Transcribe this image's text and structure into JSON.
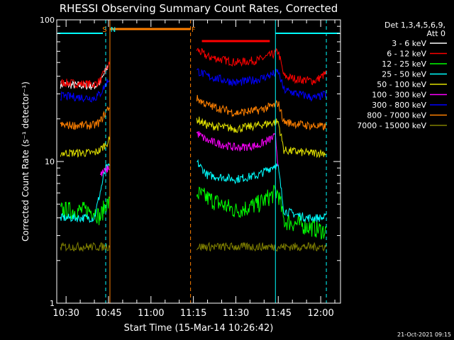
{
  "chart_data": {
    "type": "line",
    "title": "RHESSI Observing Summary Count Rates, Corrected",
    "xlabel": "Start Time (15-Mar-14 10:26:42)",
    "ylabel": "Corrected Count Rate (s⁻¹ detector⁻¹)",
    "yscale": "log",
    "ylim": [
      1,
      100
    ],
    "xlim": [
      "10:26:42",
      "12:07"
    ],
    "x_ticks": [
      "10:30",
      "10:45",
      "11:00",
      "11:15",
      "11:30",
      "11:45",
      "12:00"
    ],
    "y_ticks": [
      "1",
      "10",
      "100"
    ],
    "legend": {
      "placement": "right",
      "header": [
        "Det 1,3,4,5,6,9,",
        "Att 0"
      ],
      "entries": [
        "3 - 6 keV",
        "6 - 12 keV",
        "12 - 25 keV",
        "25 - 50 keV",
        "50 - 100 keV",
        "100 - 300 keV",
        "300 - 800 keV",
        "800 - 7000 keV",
        "7000 - 15000 keV"
      ]
    },
    "flags": [
      {
        "label": "S"
      },
      {
        "label": "N"
      },
      {
        "label": "F"
      }
    ],
    "series": [
      {
        "name": "3 - 6 keV",
        "color": "#ffffff",
        "x": [
          "10:28",
          "10:40",
          "10:42",
          "10:45"
        ],
        "y": [
          35,
          34,
          36,
          48
        ]
      },
      {
        "name": "6 - 12 keV",
        "color": "#ff0000",
        "x": [
          "10:28",
          "10:40",
          "10:42",
          "10:45",
          "11:16",
          "11:20",
          "11:30",
          "11:38",
          "11:44",
          "11:45",
          "11:47",
          "11:52",
          "11:58",
          "12:02"
        ],
        "y": [
          36,
          35,
          37,
          48,
          62,
          55,
          50,
          52,
          58,
          60,
          40,
          38,
          37,
          42
        ]
      },
      {
        "name": "12 - 25 keV",
        "color": "#00ff00",
        "x": [
          "10:28",
          "10:40",
          "10:42",
          "10:44",
          "11:16",
          "11:20",
          "11:30",
          "11:38",
          "11:44",
          "11:45",
          "11:47",
          "11:55",
          "12:02"
        ],
        "y": [
          4.5,
          4.5,
          4,
          5,
          6,
          5.5,
          4.5,
          5,
          6,
          6,
          3.8,
          3.5,
          3.2
        ]
      },
      {
        "name": "25 - 50 keV",
        "color": "#00ffff",
        "x": [
          "10:28",
          "10:40",
          "10:42",
          "10:44",
          "11:16",
          "11:20",
          "11:30",
          "11:38",
          "11:44",
          "11:45",
          "11:47",
          "11:55",
          "12:02"
        ],
        "y": [
          4,
          4,
          6,
          9,
          10,
          8,
          7.5,
          8,
          9.5,
          9,
          4.5,
          4,
          4
        ]
      },
      {
        "name": "50 - 100 keV",
        "color": "#e0e000",
        "x": [
          "10:28",
          "10:40",
          "10:42",
          "10:45",
          "11:16",
          "11:20",
          "11:30",
          "11:38",
          "11:44",
          "11:45",
          "11:47",
          "11:55",
          "12:02"
        ],
        "y": [
          11.5,
          11.5,
          12,
          14,
          20,
          18,
          17,
          18,
          19,
          19,
          12,
          11.5,
          11.5
        ]
      },
      {
        "name": "100 - 300 keV",
        "color": "#ff00ff",
        "x": [
          "10:42",
          "10:45",
          "11:16",
          "11:20",
          "11:30",
          "11:38",
          "11:44",
          "11:45"
        ],
        "y": [
          8,
          9,
          16,
          14,
          12.5,
          13,
          15,
          9
        ]
      },
      {
        "name": "300 - 800 keV",
        "color": "#0000ff",
        "x": [
          "10:28",
          "10:40",
          "10:42",
          "10:45",
          "11:16",
          "11:20",
          "11:30",
          "11:38",
          "11:44",
          "11:45",
          "11:47",
          "11:52",
          "11:58",
          "12:02"
        ],
        "y": [
          29,
          28,
          30,
          38,
          44,
          40,
          36,
          38,
          42,
          43,
          32,
          30,
          28,
          30
        ]
      },
      {
        "name": "800 - 7000 keV",
        "color": "#ff8000",
        "x": [
          "10:28",
          "10:40",
          "10:42",
          "10:45",
          "11:16",
          "11:20",
          "11:30",
          "11:38",
          "11:44",
          "11:45",
          "11:47",
          "11:55",
          "12:02"
        ],
        "y": [
          18,
          18,
          19,
          24,
          28,
          25,
          22,
          23,
          25,
          26,
          19,
          18,
          17.5
        ]
      },
      {
        "name": "7000 - 15000 keV",
        "color": "#808000",
        "x": [
          "10:28",
          "12:02"
        ],
        "y": [
          2.5,
          2.5
        ]
      }
    ],
    "footer_timestamp": "21-Oct-2021 09:15"
  }
}
